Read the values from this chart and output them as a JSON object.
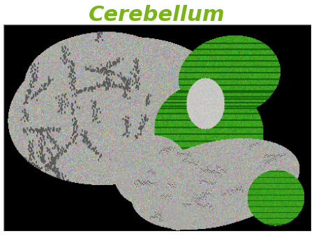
{
  "title": "Cerebellum",
  "title_color": "#7ab518",
  "title_fontsize": 22,
  "title_style": "italic",
  "title_weight": "bold",
  "title_font": "Times New Roman",
  "background_color": "#ffffff",
  "image_background": "#000000",
  "brain_gray": [
    170,
    170,
    165
  ],
  "cerebellum_green": [
    60,
    160,
    30
  ],
  "dark_gray": [
    80,
    80,
    78
  ],
  "sulci_dark": [
    90,
    90,
    88
  ]
}
